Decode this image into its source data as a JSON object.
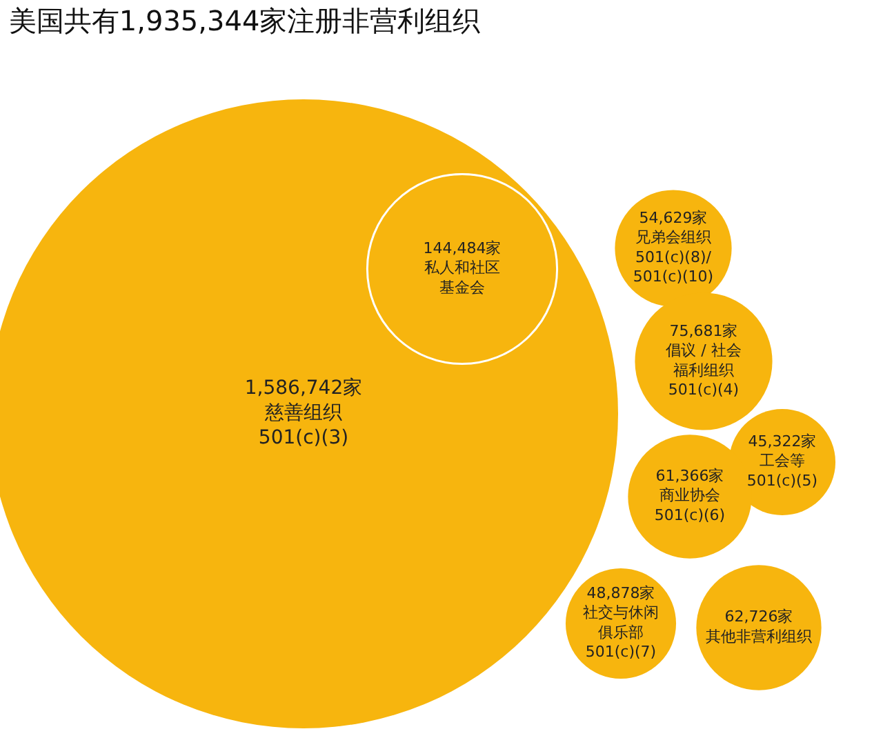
{
  "chart_data": {
    "type": "other",
    "title": "美国共有1,935,344家注册非营利组织",
    "categories": [
      "慈善组织\n501(c)(3)",
      "私人和社区基金会",
      "兄弟会组织\n501(c)(8)/\n501(c)(10)",
      "倡议 / 社会福利组织\n501(c)(4)",
      "工会等\n501(c)(5)",
      "商业协会\n501(c)(6)",
      "社交与休闲俱乐部\n501(c)(7)",
      "其他非营利组织"
    ],
    "values": [
      1586742,
      144484,
      54629,
      75681,
      45322,
      61366,
      48878,
      62726
    ],
    "value_labels": [
      "1,586,742家",
      "144,484家",
      "54,629家",
      "75,681家",
      "45,322家",
      "61,366家",
      "48,878家",
      "62,726家"
    ],
    "color": "#f7b50e"
  }
}
